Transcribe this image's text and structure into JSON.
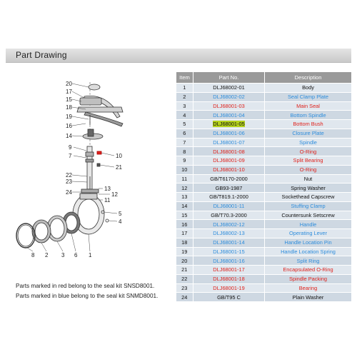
{
  "header": {
    "title": "Part Drawing"
  },
  "colors": {
    "red": "#e0231d",
    "blue": "#2e8ddc",
    "black": "#111111",
    "highlight": "#b5d21d"
  },
  "table": {
    "headers": [
      "Item",
      "Part No.",
      "Description"
    ],
    "rows": [
      {
        "item": "1",
        "part_no": "DLJ68002-01",
        "description": "Body",
        "color": "black",
        "highlight": false
      },
      {
        "item": "2",
        "part_no": "DLJ68002-02",
        "description": "Seal Clamp Plate",
        "color": "blue",
        "highlight": false
      },
      {
        "item": "3",
        "part_no": "DLJ68001-03",
        "description": "Main Seal",
        "color": "red",
        "highlight": false
      },
      {
        "item": "4",
        "part_no": "DLJ68001-04",
        "description": "Bottom Spindle",
        "color": "blue",
        "highlight": false
      },
      {
        "item": "5",
        "part_no": "DLJ68001-05",
        "description": "Bottom Bush",
        "color": "red",
        "highlight": true
      },
      {
        "item": "6",
        "part_no": "DLJ68001-06",
        "description": "Closure Plate",
        "color": "blue",
        "highlight": false
      },
      {
        "item": "7",
        "part_no": "DLJ68001-07",
        "description": "Spindle",
        "color": "blue",
        "highlight": false
      },
      {
        "item": "8",
        "part_no": "DLJ68001-08",
        "description": "O-Ring",
        "color": "red",
        "highlight": false
      },
      {
        "item": "9",
        "part_no": "DLJ68001-09",
        "description": "Split Bearing",
        "color": "red",
        "highlight": false
      },
      {
        "item": "10",
        "part_no": "DLJ68001-10",
        "description": "O-Ring",
        "color": "red",
        "highlight": false
      },
      {
        "item": "11",
        "part_no": "GB/T6170-2000",
        "description": "Nut",
        "color": "black",
        "highlight": false
      },
      {
        "item": "12",
        "part_no": "GB93-1987",
        "description": "Spring Washer",
        "color": "black",
        "highlight": false
      },
      {
        "item": "13",
        "part_no": "GB/T819.1-2000",
        "description": "Sockethead Capscrew",
        "color": "black",
        "highlight": false
      },
      {
        "item": "14",
        "part_no": "DLJ68001-11",
        "description": "Stuffing Clamp",
        "color": "blue",
        "highlight": false
      },
      {
        "item": "15",
        "part_no": "GB/T70.3-2000",
        "description": "Countersunk Setscrew",
        "color": "black",
        "highlight": false
      },
      {
        "item": "16",
        "part_no": "DLJ68002-12",
        "description": "Handle",
        "color": "blue",
        "highlight": false
      },
      {
        "item": "17",
        "part_no": "DLJ68002-13",
        "description": "Operating Lever",
        "color": "blue",
        "highlight": false
      },
      {
        "item": "18",
        "part_no": "DLJ68001-14",
        "description": "Handle Location Pin",
        "color": "blue",
        "highlight": false
      },
      {
        "item": "19",
        "part_no": "DLJ68001-15",
        "description": "Handle Location Spring",
        "color": "blue",
        "highlight": false
      },
      {
        "item": "20",
        "part_no": "DLJ68001-16",
        "description": "Split Ring",
        "color": "blue",
        "highlight": false
      },
      {
        "item": "21",
        "part_no": "DLJ68001-17",
        "description": "Encapsulated O-Ring",
        "color": "red",
        "highlight": false
      },
      {
        "item": "22",
        "part_no": "DLJ68001-18",
        "description": "Spindle Packing",
        "color": "red",
        "highlight": false
      },
      {
        "item": "23",
        "part_no": "DLJ68001-19",
        "description": "Bearing",
        "color": "red",
        "highlight": false
      },
      {
        "item": "24",
        "part_no": "GB/T95 C",
        "description": "Plain Washer",
        "color": "black",
        "highlight": false
      }
    ]
  },
  "drawing": {
    "callouts_left": [
      "20",
      "17",
      "15",
      "18",
      "19",
      "16",
      "14",
      "9",
      "7",
      "22",
      "23",
      "24"
    ],
    "callouts_right": [
      "10",
      "21",
      "13",
      "12",
      "11",
      "5",
      "4"
    ],
    "callouts_bottom": [
      "8",
      "2",
      "3",
      "6",
      "1"
    ]
  },
  "notes": {
    "red": "Parts marked in red  belong to the seal kit SNSD8001.",
    "blue": "Parts marked in blue  belong to the seal kit SNMD8001."
  }
}
